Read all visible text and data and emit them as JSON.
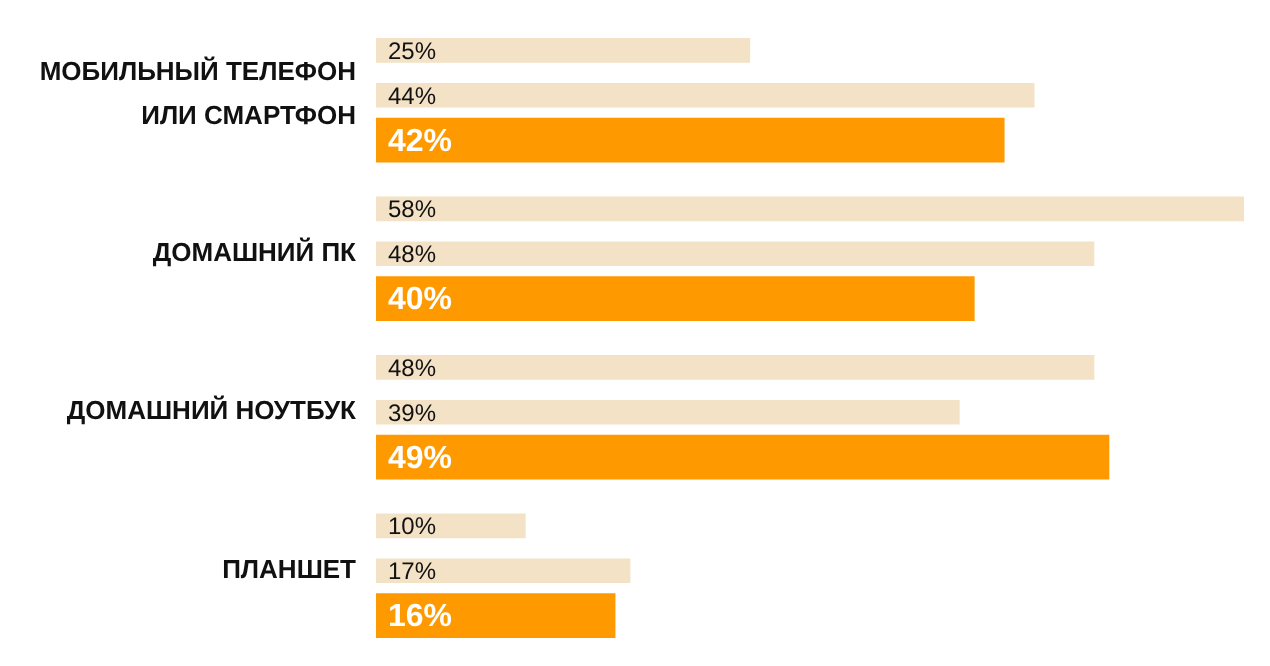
{
  "chart_data": {
    "type": "bar",
    "orientation": "horizontal",
    "categories": [
      "МОБИЛЬНЫЙ ТЕЛЕФОН ИЛИ СМАРТФОН",
      "ДОМАШНИЙ ПК",
      "ДОМАШНИЙ НОУТБУК",
      "ПЛАНШЕТ"
    ],
    "series": [
      {
        "color": "#f3e2c6",
        "values": [
          25,
          58,
          48,
          10
        ],
        "value_labels": [
          "25%",
          "58%",
          "48%",
          "10%"
        ]
      },
      {
        "color": "#f3e2c6",
        "values": [
          44,
          48,
          39,
          17
        ],
        "value_labels": [
          "44%",
          "48%",
          "39%",
          "17%"
        ]
      },
      {
        "color": "#ff9900",
        "values": [
          42,
          40,
          49,
          16
        ],
        "value_labels": [
          "42%",
          "40%",
          "49%",
          "16%"
        ]
      }
    ],
    "legend": false,
    "tick_labels": "y"
  }
}
